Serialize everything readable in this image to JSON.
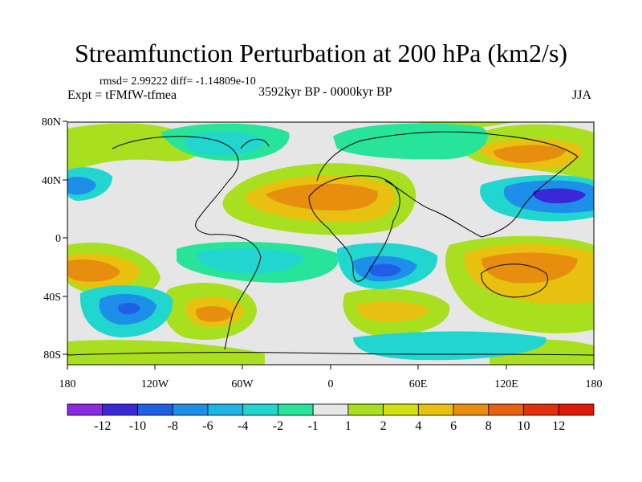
{
  "title": "Streamfunction Perturbation at 200 hPa (km2/s)",
  "stats_text": "rmsd= 2.99222 diff= -1.14809e-10",
  "experiment": "Expt = tFMfW-tfmea",
  "period": "3592kyr BP - 0000kyr BP",
  "season": "JJA",
  "lat_labels": [
    "80N",
    "40N",
    "0",
    "40S",
    "80S"
  ],
  "lon_labels": [
    "180",
    "120W",
    "60W",
    "0",
    "60E",
    "120E",
    "180"
  ],
  "colorbar": {
    "labels": [
      "-12",
      "-10",
      "-8",
      "-6",
      "-4",
      "-2",
      "-1",
      "1",
      "2",
      "4",
      "6",
      "8",
      "10",
      "12"
    ],
    "colors": [
      "#8a2be2",
      "#3a28d8",
      "#1f5fe6",
      "#1d8fe8",
      "#1cb5e6",
      "#22d6d0",
      "#28e39a",
      "#e6e6e6",
      "#a8e020",
      "#d2e012",
      "#e8c010",
      "#e88e0e",
      "#e6620e",
      "#e2300c",
      "#dc1a0a"
    ]
  },
  "icons": {
    "map_region": "world-map-contour-icon"
  }
}
